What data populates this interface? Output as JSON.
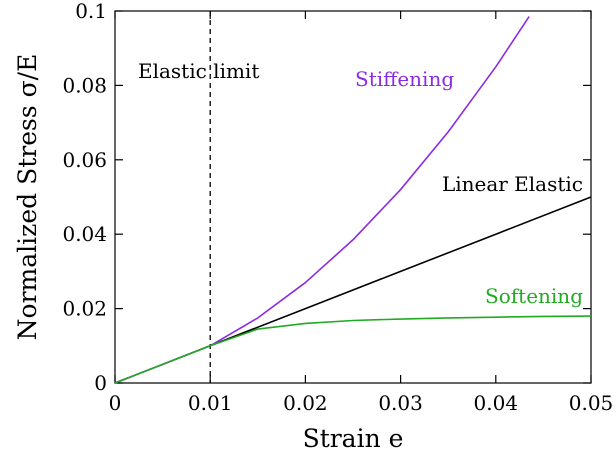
{
  "chart_data": {
    "type": "line",
    "xlabel": "Strain e",
    "ylabel": "Normalized Stress σ/E",
    "xlim": [
      0,
      0.05
    ],
    "ylim": [
      0,
      0.1
    ],
    "x_ticks": [
      "0",
      "0.01",
      "0.02",
      "0.03",
      "0.04",
      "0.05"
    ],
    "y_ticks": [
      "0",
      "0.02",
      "0.04",
      "0.06",
      "0.08",
      "0.1"
    ],
    "grid": false,
    "elastic_limit": {
      "x": 0.01,
      "label": "Elastic limit",
      "style": "dashed"
    },
    "series": [
      {
        "name": "Linear Elastic",
        "color": "#000000",
        "x": [
          0,
          0.01,
          0.02,
          0.03,
          0.04,
          0.05
        ],
        "y": [
          0,
          0.01,
          0.02,
          0.03,
          0.04,
          0.05
        ]
      },
      {
        "name": "Stiffening",
        "color": "#8b2be2",
        "x": [
          0,
          0.01,
          0.015,
          0.02,
          0.025,
          0.03,
          0.035,
          0.04,
          0.0435
        ],
        "y": [
          0,
          0.01,
          0.0175,
          0.027,
          0.0385,
          0.052,
          0.0675,
          0.085,
          0.0985
        ]
      },
      {
        "name": "Softening",
        "color": "#22aa22",
        "x": [
          0,
          0.01,
          0.015,
          0.02,
          0.025,
          0.03,
          0.035,
          0.04,
          0.045,
          0.05
        ],
        "y": [
          0,
          0.01,
          0.0145,
          0.016,
          0.0168,
          0.0172,
          0.0175,
          0.0177,
          0.0179,
          0.018
        ]
      }
    ]
  }
}
